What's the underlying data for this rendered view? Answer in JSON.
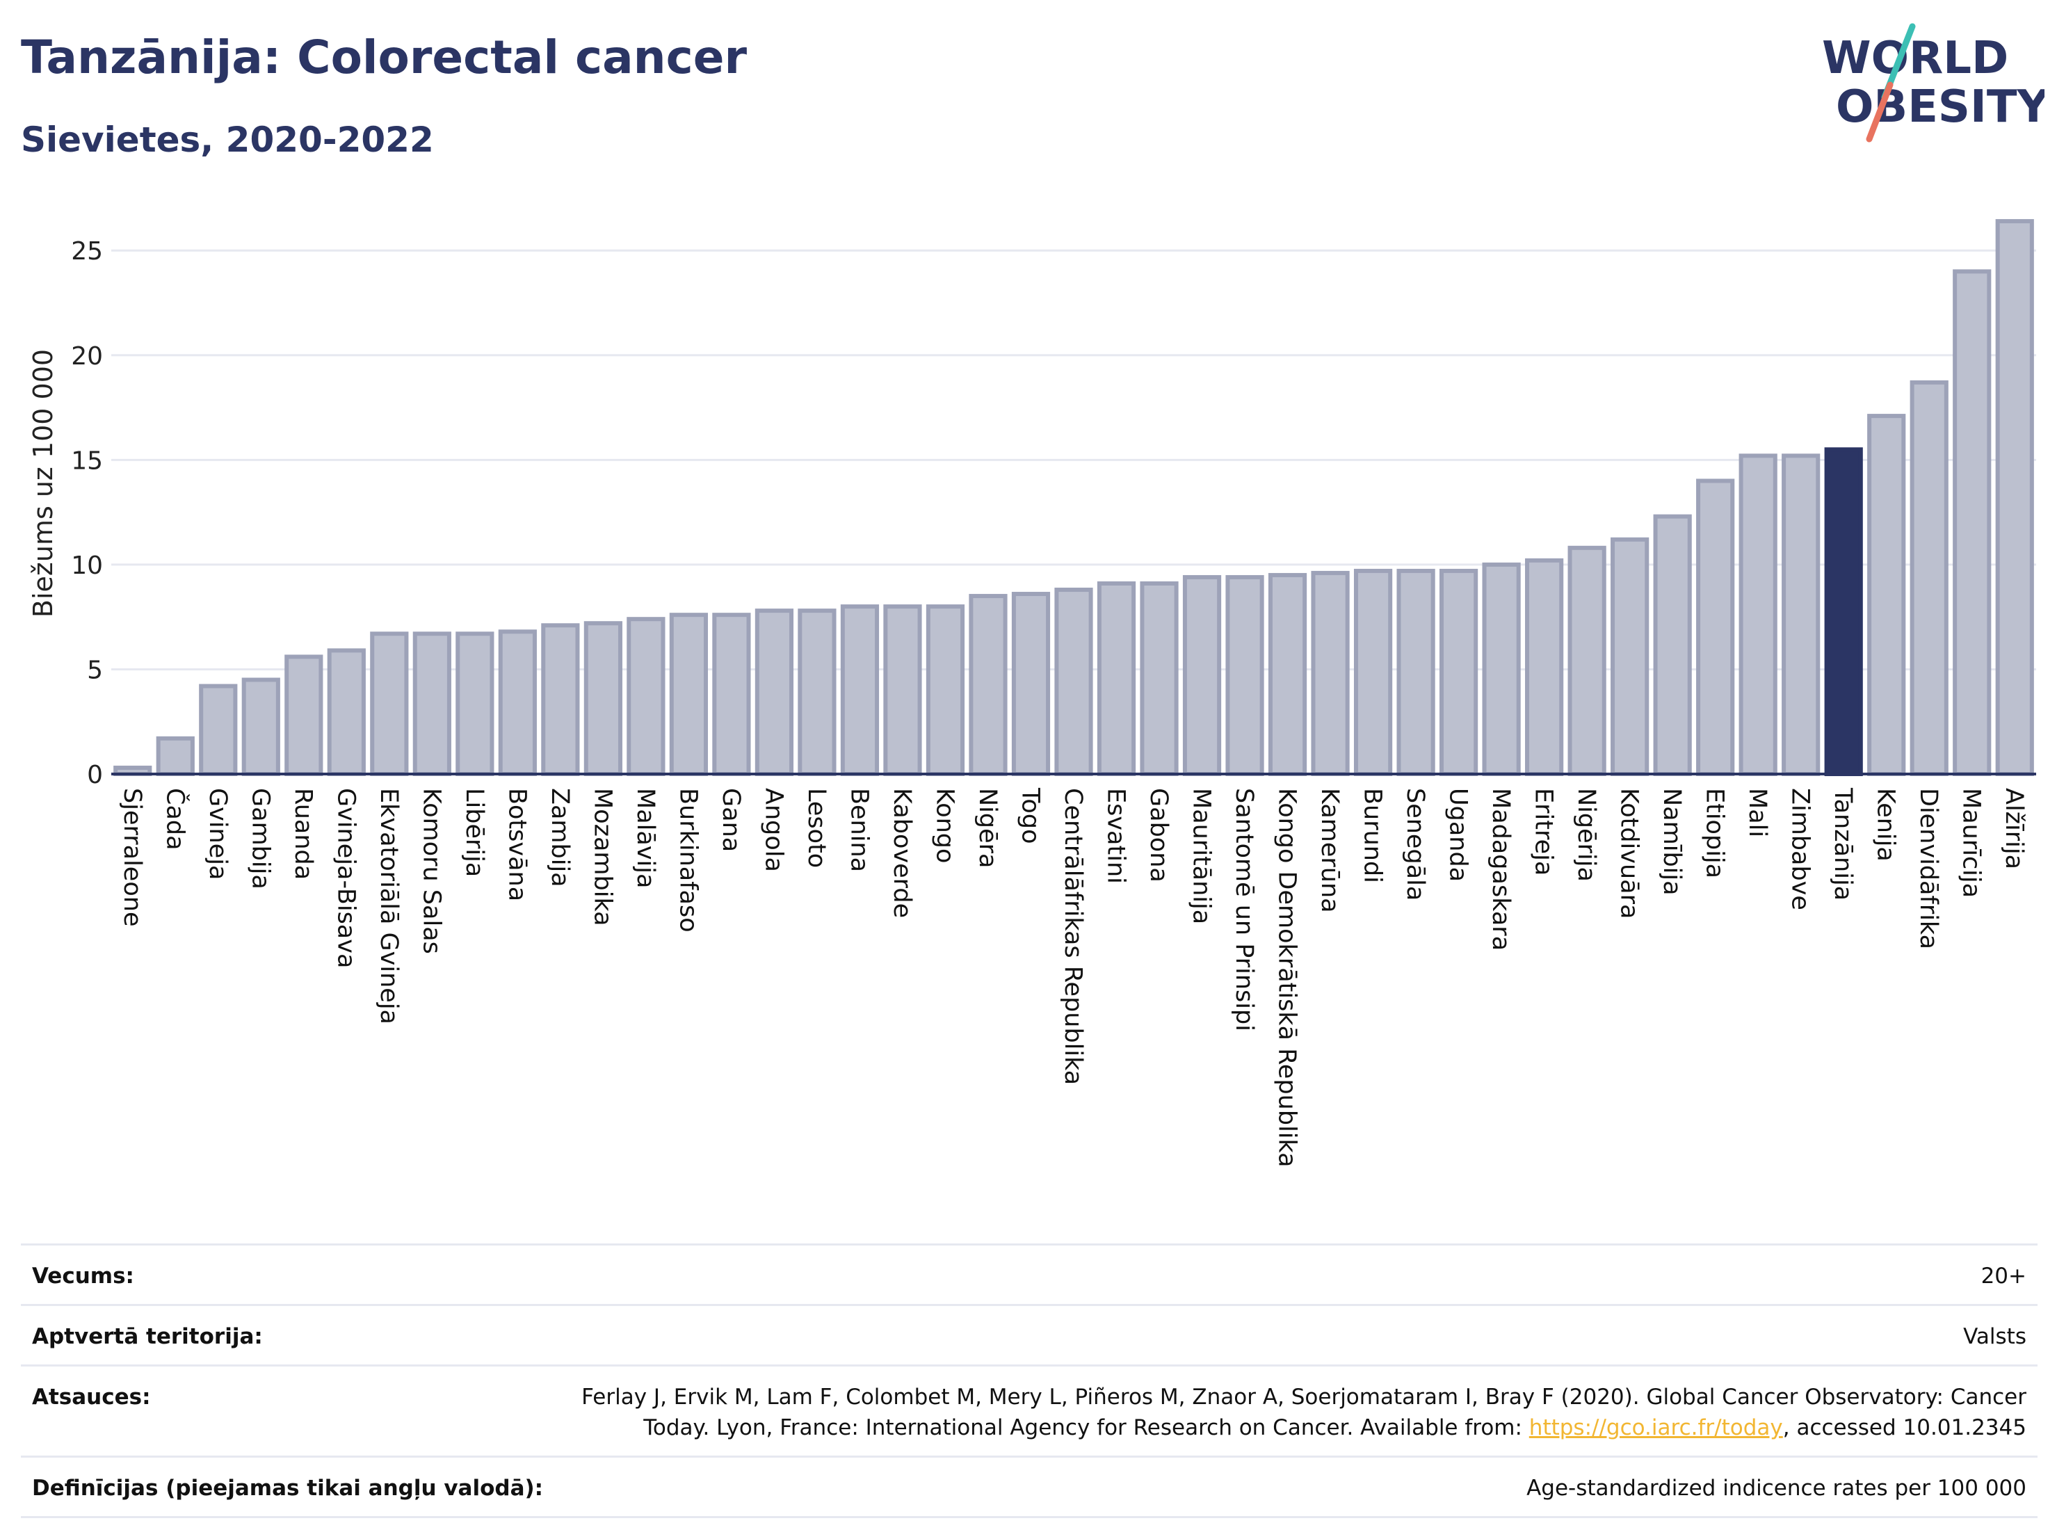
{
  "header": {
    "title": "Tanzānija: Colorectal cancer",
    "subtitle": "Sievietes, 2020-2022",
    "logo_line1": "WORLD",
    "logo_line2": "OBESITY"
  },
  "colors": {
    "highlight": "#2b3564",
    "bar": "#bcc0cf",
    "bar_outline": "#9da2b8",
    "title": "#2b3564",
    "link": "#f2b632",
    "logo_teal": "#3cbfb4",
    "logo_coral": "#e8735f"
  },
  "chart_data": {
    "type": "bar",
    "title": "",
    "xlabel": "",
    "ylabel": "Biežums uz 100 000",
    "ylim": [
      0,
      27
    ],
    "yticks": [
      0,
      5,
      10,
      15,
      20,
      25
    ],
    "grid": true,
    "highlight": "Tanzānija",
    "categories": [
      "Sjerraleone",
      "Čada",
      "Gvineja",
      "Gambija",
      "Ruanda",
      "Gvineja-Bisava",
      "Ekvatoriālā Gvineja",
      "Komoru Salas",
      "Libērija",
      "Botsvāna",
      "Zambija",
      "Mozambika",
      "Malāvija",
      "Burkinafaso",
      "Gana",
      "Angola",
      "Lesoto",
      "Benina",
      "Kaboverde",
      "Kongo",
      "Nigēra",
      "Togo",
      "Centrālāfrikas Republika",
      "Esvatini",
      "Gabona",
      "Mauritānija",
      "Santomē un Prinsipi",
      "Kongo Demokrātiskā Republika",
      "Kamerūna",
      "Burundi",
      "Senegāla",
      "Uganda",
      "Madagaskara",
      "Eritreja",
      "Nigērija",
      "Kotdivuāra",
      "Namībija",
      "Etiopija",
      "Mali",
      "Zimbabve",
      "Tanzānija",
      "Kenija",
      "Dienvidāfrika",
      "Maurīcija",
      "Alžīrija"
    ],
    "values": [
      0.3,
      1.7,
      4.2,
      4.5,
      5.6,
      5.9,
      6.7,
      6.7,
      6.7,
      6.8,
      7.1,
      7.2,
      7.4,
      7.6,
      7.6,
      7.8,
      7.8,
      8.0,
      8.0,
      8.0,
      8.5,
      8.6,
      8.8,
      9.1,
      9.1,
      9.4,
      9.4,
      9.5,
      9.6,
      9.7,
      9.7,
      9.7,
      10.0,
      10.2,
      10.8,
      11.2,
      12.3,
      14.0,
      15.2,
      15.2,
      15.5,
      17.1,
      18.7,
      24.0,
      26.4
    ]
  },
  "info": {
    "age_label": "Vecums:",
    "age_value": "20+",
    "coverage_label": "Aptvertā teritorija:",
    "coverage_value": "Valsts",
    "refs_label": "Atsauces:",
    "refs_line1": "Ferlay J, Ervik M, Lam F, Colombet M, Mery L, Piñeros M, Znaor A, Soerjomataram I, Bray F (2020). Global Cancer Observatory: Cancer",
    "refs_line2_pre": "Today. Lyon, France: International Agency for Research on Cancer. Available from: ",
    "refs_link": "https://gco.iarc.fr/today",
    "refs_line2_post": ", accessed 10.01.2345",
    "defs_label": "Definīcijas (pieejamas tikai angļu valodā):",
    "defs_value": "Age-standardized indicence rates per 100 000"
  }
}
